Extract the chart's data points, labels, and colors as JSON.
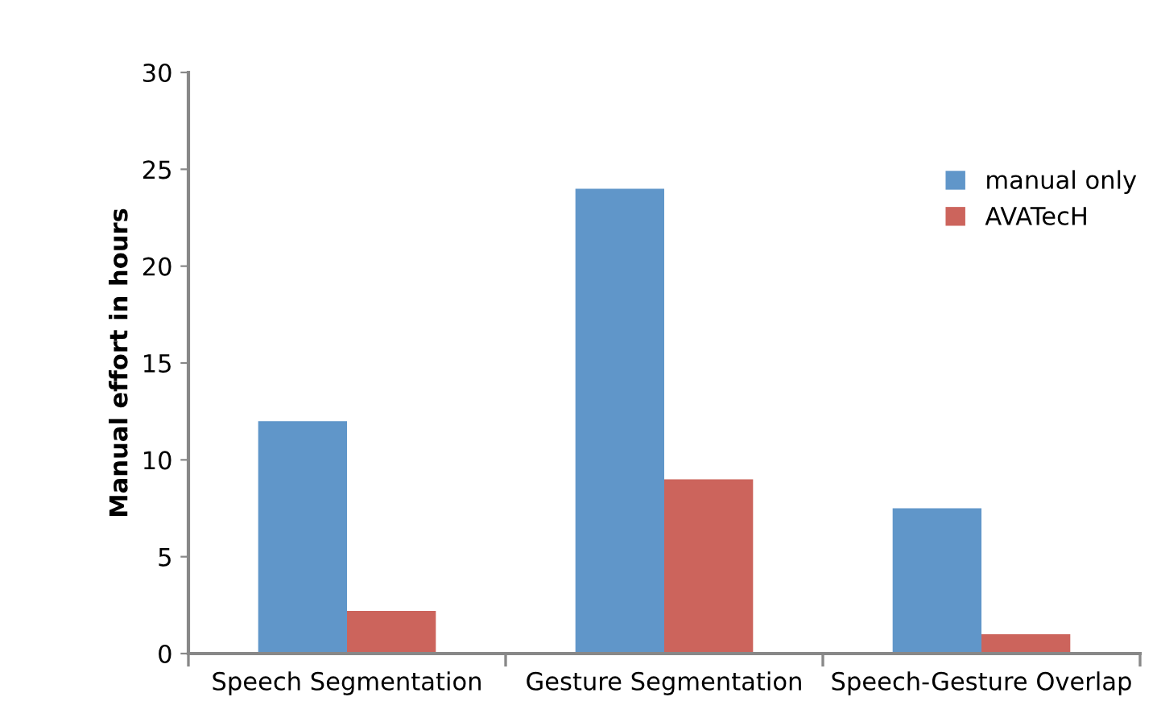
{
  "chart_data": {
    "type": "bar",
    "ylabel": "Manual effort in hours",
    "categories": [
      "Speech Segmentation",
      "Gesture Segmentation",
      "Speech-Gesture Overlap"
    ],
    "series": [
      {
        "name": "manual only",
        "color": "#6096c9",
        "values": [
          12,
          24,
          7.5
        ]
      },
      {
        "name": "AVATecH",
        "color": "#cc645c",
        "values": [
          2.2,
          9,
          1
        ]
      }
    ],
    "ylim": [
      0,
      30
    ],
    "yticks": [
      0,
      5,
      10,
      15,
      20,
      25,
      30
    ],
    "grid": false,
    "legend": "top right"
  }
}
